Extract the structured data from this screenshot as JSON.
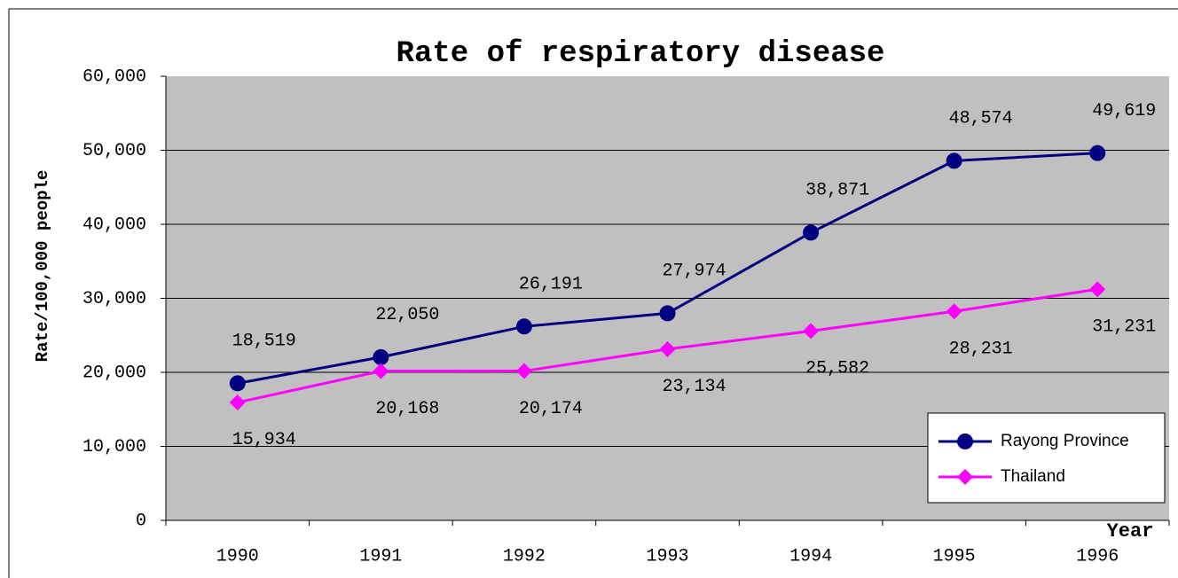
{
  "chart_data": {
    "type": "line",
    "title": "Rate of respiratory disease",
    "y_label": "Rate/100,000 people",
    "x_label": "Year",
    "categories": [
      "1990",
      "1991",
      "1992",
      "1993",
      "1994",
      "1995",
      "1996"
    ],
    "series": [
      {
        "name": "Rayong Province",
        "color": "#000080",
        "marker": "circle",
        "values": [
          18519,
          22050,
          26191,
          27974,
          38871,
          48574,
          49619
        ],
        "value_labels": [
          "18,519",
          "22,050",
          "26,191",
          "27,974",
          "38,871",
          "48,574",
          "49,619"
        ]
      },
      {
        "name": "Thailand",
        "color": "#ff00ff",
        "marker": "diamond",
        "values": [
          15934,
          20168,
          20174,
          23134,
          25582,
          28231,
          31231
        ],
        "value_labels": [
          "15,934",
          "20,168",
          "20,174",
          "23,134",
          "25,582",
          "28,231",
          "31,231"
        ]
      }
    ],
    "ylim": [
      0,
      60000
    ],
    "yticks": [
      0,
      {
        "value": 10000,
        "label": "10,000"
      },
      {
        "value": 20000,
        "label": "20,000"
      },
      {
        "value": 30000,
        "label": "30,000"
      },
      {
        "value": 40000,
        "label": "40,000"
      },
      {
        "value": 50000,
        "label": "50,000"
      },
      {
        "value": 60000,
        "label": "60,000"
      }
    ],
    "grid": true,
    "legend": "lower right"
  }
}
